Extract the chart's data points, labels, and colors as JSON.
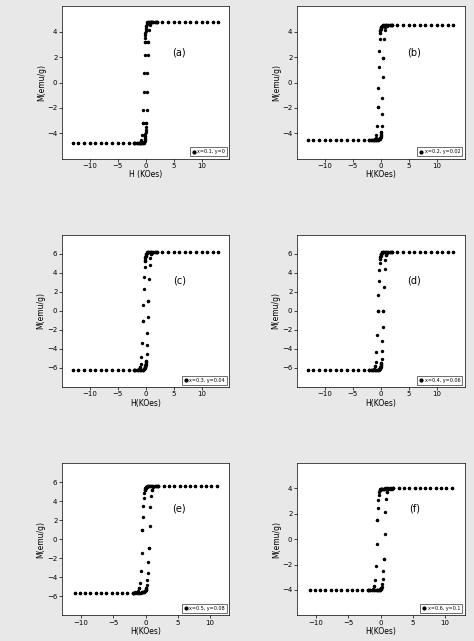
{
  "panels": [
    {
      "label": "(a)",
      "legend": "x=0.1, y=0",
      "Ms": 4.8,
      "Hc": 0.3,
      "steepness": 4.0,
      "xlim": [
        -15,
        15
      ],
      "ylim": [
        -6,
        6
      ],
      "yticks": [
        -4,
        -2,
        0,
        2,
        4
      ],
      "xticks": [
        -10,
        -5,
        0,
        5,
        10
      ],
      "xlabel": "H (KOes)",
      "ylabel": "M(emu/g)"
    },
    {
      "label": "(b)",
      "legend": "x=0.2, y=0.02",
      "Ms": 4.5,
      "Hc": 0.4,
      "steepness": 4.5,
      "xlim": [
        -15,
        15
      ],
      "ylim": [
        -6,
        6
      ],
      "yticks": [
        -4,
        -2,
        0,
        2,
        4
      ],
      "xticks": [
        -10,
        -5,
        0,
        5,
        10
      ],
      "xlabel": "H(KOes)",
      "ylabel": "M(emu/g)"
    },
    {
      "label": "(c)",
      "legend": "x=0.3, y=0.04",
      "Ms": 6.2,
      "Hc": 0.45,
      "steepness": 3.5,
      "xlim": [
        -15,
        15
      ],
      "ylim": [
        -8,
        8
      ],
      "yticks": [
        -6,
        -4,
        -2,
        0,
        2,
        4,
        6
      ],
      "xticks": [
        -10,
        -5,
        0,
        5,
        10
      ],
      "xlabel": "H(KOes)",
      "ylabel": "M(emu/g)"
    },
    {
      "label": "(d)",
      "legend": "x=0.4, y=0.06",
      "Ms": 6.2,
      "Hc": 0.5,
      "steepness": 3.5,
      "xlim": [
        -15,
        15
      ],
      "ylim": [
        -8,
        8
      ],
      "yticks": [
        -6,
        -4,
        -2,
        0,
        2,
        4,
        6
      ],
      "xticks": [
        -10,
        -5,
        0,
        5,
        10
      ],
      "xlabel": "H(KOes)",
      "ylabel": "M(emu/g)"
    },
    {
      "label": "(e)",
      "legend": "x=0.5, y=0.08",
      "Ms": 5.6,
      "Hc": 0.55,
      "steepness": 3.5,
      "xlim": [
        -13,
        13
      ],
      "ylim": [
        -8,
        8
      ],
      "yticks": [
        -6,
        -4,
        -2,
        0,
        2,
        4,
        6
      ],
      "xticks": [
        -10,
        -5,
        0,
        5,
        10
      ],
      "xlabel": "H(KOes)",
      "ylabel": "M(emu/g)"
    },
    {
      "label": "(f)",
      "legend": "x=0.6, y=0.1",
      "Ms": 4.0,
      "Hc": 0.6,
      "steepness": 4.0,
      "xlim": [
        -13,
        13
      ],
      "ylim": [
        -6,
        6
      ],
      "yticks": [
        -4,
        -2,
        0,
        2,
        4
      ],
      "xticks": [
        -10,
        -5,
        0,
        5,
        10
      ],
      "xlabel": "H(KOes)",
      "ylabel": "M(emu/g)"
    }
  ],
  "dot_color": "black",
  "dot_size": 6,
  "background_color": "#e8e8e8",
  "axes_background": "white"
}
